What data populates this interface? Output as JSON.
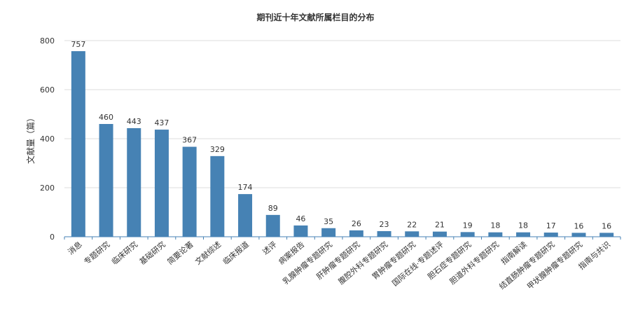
{
  "chart_data": {
    "type": "bar",
    "title": "期刊近十年文献所属栏目的分布",
    "xlabel": "",
    "ylabel": "文献量（篇）",
    "ylim": [
      0,
      800
    ],
    "yticks": [
      0,
      200,
      400,
      600,
      800
    ],
    "grid": true,
    "legend": "none",
    "categories": [
      "消息",
      "专题研究",
      "临床研究",
      "基础研究",
      "简要论著",
      "文献综述",
      "临床报道",
      "述评",
      "病案报告",
      "乳腺肿瘤专题研究",
      "肝肿瘤专题研究",
      "腹腔外科专题研究",
      "胃肿瘤专题研究",
      "国际在线·专题述评",
      "胆石症专题研究",
      "胆道外科专题研究",
      "指南解读",
      "结直肠肿瘤专题研究",
      "甲状腺肿瘤专题研究",
      "指南与共识"
    ],
    "values": [
      757,
      460,
      443,
      437,
      367,
      329,
      174,
      89,
      46,
      35,
      26,
      23,
      22,
      21,
      19,
      18,
      18,
      17,
      16,
      16
    ],
    "bar_color": "#4682b4",
    "grid_color": "#dddddd",
    "axis_color": "#4682b4",
    "text_color": "#333333"
  }
}
